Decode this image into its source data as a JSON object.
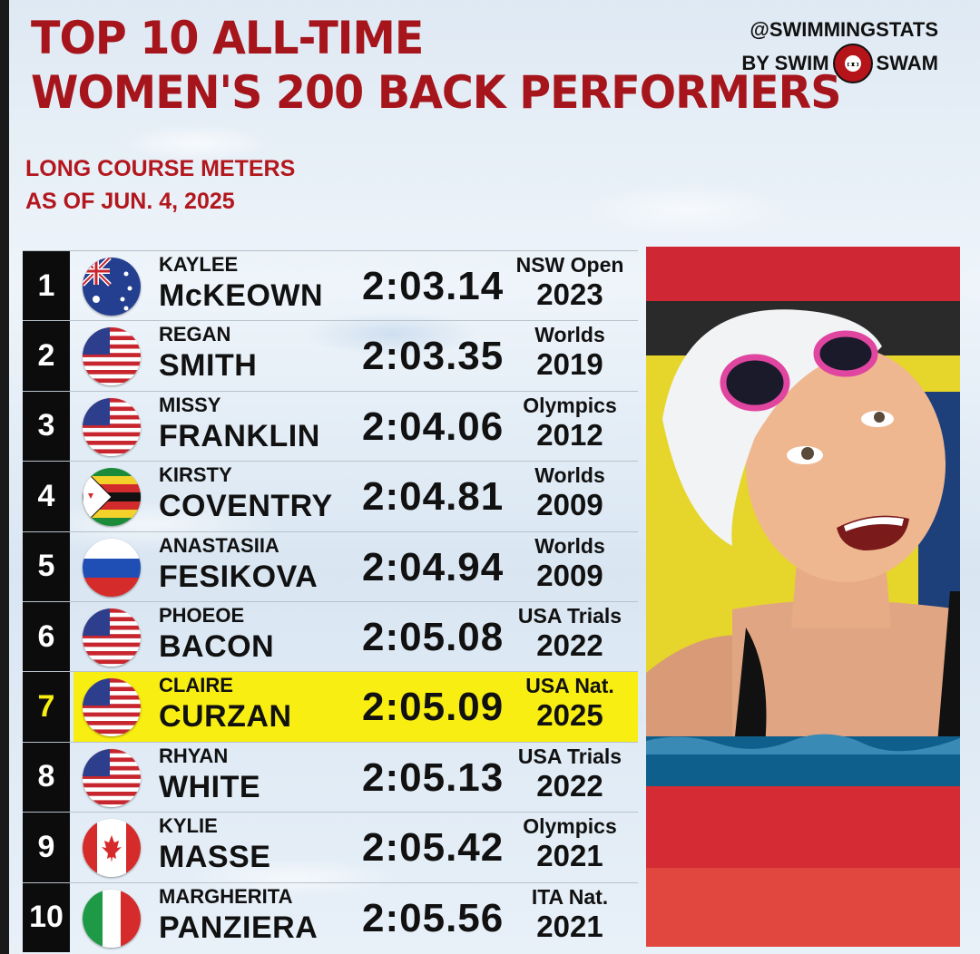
{
  "title": {
    "line1": "TOP 10 ALL-TIME",
    "line2": "WOMEN'S 200 BACK PERFORMERS"
  },
  "subtitle": {
    "line1": "LONG COURSE METERS",
    "line2": "AS OF JUN. 4, 2025"
  },
  "brand": {
    "handle": "@SWIMMINGSTATS",
    "by": "BY SWIM",
    "name": "SWAM"
  },
  "colors": {
    "title_red": "#a5151b",
    "highlight_yellow": "#f9ee12",
    "rank_black": "#0c0c0c"
  },
  "rows": [
    {
      "rank": "1",
      "first": "KAYLEE",
      "last": "McKEOWN",
      "time": "2:03.14",
      "meet": "NSW Open",
      "year": "2023",
      "flag": "australia-flag-icon"
    },
    {
      "rank": "2",
      "first": "REGAN",
      "last": "SMITH",
      "time": "2:03.35",
      "meet": "Worlds",
      "year": "2019",
      "flag": "usa-flag-icon"
    },
    {
      "rank": "3",
      "first": "MISSY",
      "last": "FRANKLIN",
      "time": "2:04.06",
      "meet": "Olympics",
      "year": "2012",
      "flag": "usa-flag-icon"
    },
    {
      "rank": "4",
      "first": "KIRSTY",
      "last": "COVENTRY",
      "time": "2:04.81",
      "meet": "Worlds",
      "year": "2009",
      "flag": "zimbabwe-flag-icon"
    },
    {
      "rank": "5",
      "first": "ANASTASIIA",
      "last": "FESIKOVA",
      "time": "2:04.94",
      "meet": "Worlds",
      "year": "2009",
      "flag": "russia-flag-icon"
    },
    {
      "rank": "6",
      "first": "PHOEOE",
      "last": "BACON",
      "time": "2:05.08",
      "meet": "USA Trials",
      "year": "2022",
      "flag": "usa-flag-icon"
    },
    {
      "rank": "7",
      "first": "CLAIRE",
      "last": "CURZAN",
      "time": "2:05.09",
      "meet": "USA Nat.",
      "year": "2025",
      "flag": "usa-flag-icon",
      "highlight": true
    },
    {
      "rank": "8",
      "first": "RHYAN",
      "last": "WHITE",
      "time": "2:05.13",
      "meet": "USA Trials",
      "year": "2022",
      "flag": "usa-flag-icon"
    },
    {
      "rank": "9",
      "first": "KYLIE",
      "last": "MASSE",
      "time": "2:05.42",
      "meet": "Olympics",
      "year": "2021",
      "flag": "canada-flag-icon"
    },
    {
      "rank": "10",
      "first": "MARGHERITA",
      "last": "PANZIERA",
      "time": "2:05.56",
      "meet": "ITA Nat.",
      "year": "2021",
      "flag": "italy-flag-icon"
    }
  ]
}
